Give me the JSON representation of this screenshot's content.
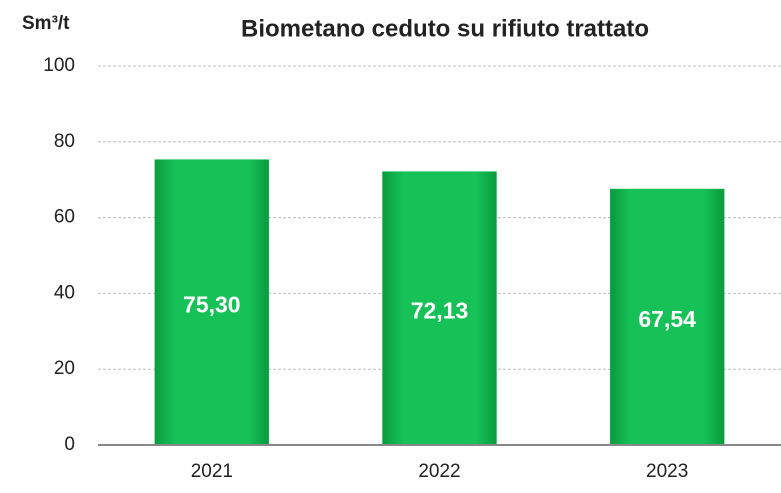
{
  "chart_data": {
    "type": "bar",
    "title": "Biometano ceduto su rifiuto trattato",
    "y_label": "Sm³/t",
    "categories": [
      "2021",
      "2022",
      "2023"
    ],
    "values": [
      75.3,
      72.13,
      67.54
    ],
    "value_labels": [
      "75,30",
      "72,13",
      "67,54"
    ],
    "color": "#12c052",
    "ylim": [
      0,
      100
    ],
    "yticks": [
      0,
      20,
      40,
      60,
      80,
      100
    ],
    "grid": true
  }
}
